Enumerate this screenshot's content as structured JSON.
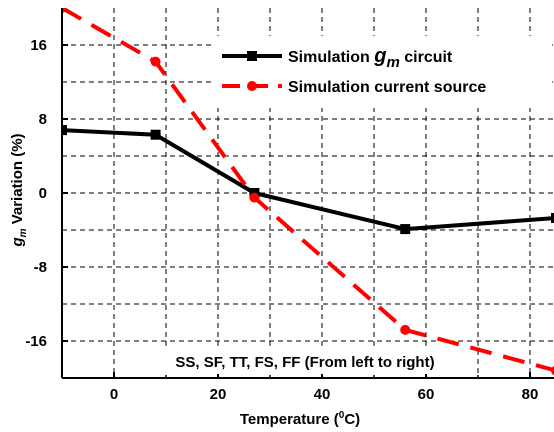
{
  "chart_data": {
    "type": "line",
    "xlabel": "Temperature (°C)",
    "xlabel_parts": {
      "pre": "Temperature (",
      "sup": "0",
      "post": "C)"
    },
    "ylabel": "g_m Variation (%)",
    "ylabel_parts": {
      "g": "g",
      "sub": "m",
      "rest": " Variation (%)"
    },
    "xlim": [
      -10,
      85
    ],
    "ylim": [
      -20,
      20
    ],
    "xticks": [
      0,
      20,
      40,
      60,
      80
    ],
    "yticks": [
      -16,
      -8,
      0,
      8,
      16
    ],
    "grid": true,
    "legend_position": "top-right",
    "annotation": "SS, SF, TT, FS, FF (From left to right)",
    "series": [
      {
        "name": "Simulation g_m circuit",
        "name_parts": {
          "pre": "Simulation ",
          "g": "g",
          "sub": "m",
          "post": " circuit"
        },
        "color": "#000000",
        "marker": "square",
        "dash": "solid",
        "x": [
          -10,
          8,
          27,
          56,
          85
        ],
        "y": [
          6.8,
          6.3,
          0.0,
          -3.9,
          -2.7
        ]
      },
      {
        "name": "Simulation current source",
        "color": "#ff0000",
        "marker": "circle",
        "dash": "dashed",
        "x": [
          -10,
          8,
          27,
          56,
          85
        ],
        "y": [
          20.0,
          14.2,
          -0.5,
          -14.8,
          -19.2
        ]
      }
    ]
  }
}
